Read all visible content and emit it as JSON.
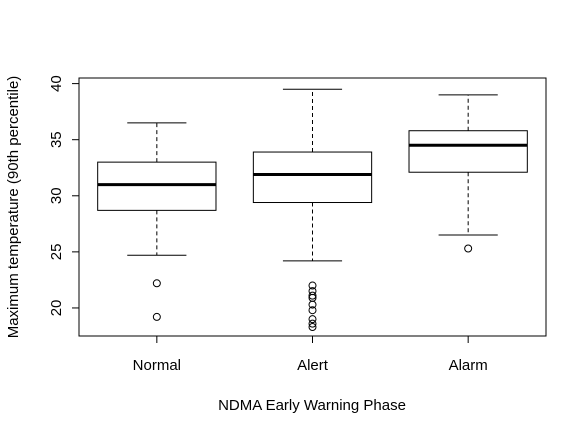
{
  "chart_data": {
    "type": "boxplot",
    "title": "",
    "xlabel": "NDMA Early Warning Phase",
    "ylabel": "Maximum temperature (90th percentile)",
    "categories": [
      "Normal",
      "Alert",
      "Alarm"
    ],
    "ylim": [
      17.5,
      40.5
    ],
    "yticks": [
      20,
      25,
      30,
      35,
      40
    ],
    "grid": false,
    "legend": "none",
    "stroke_color": "#000000",
    "background_color": "#ffffff",
    "boxes": [
      {
        "category": "Normal",
        "whisker_low": 24.7,
        "q1": 28.7,
        "median": 31.0,
        "q3": 33.0,
        "whisker_high": 36.5,
        "outliers": [
          22.2,
          19.2
        ]
      },
      {
        "category": "Alert",
        "whisker_low": 24.2,
        "q1": 29.4,
        "median": 31.9,
        "q3": 33.9,
        "whisker_high": 39.5,
        "outliers": [
          22.0,
          21.5,
          21.1,
          20.9,
          20.3,
          19.8,
          19.0,
          18.6,
          18.3
        ]
      },
      {
        "category": "Alarm",
        "whisker_low": 26.5,
        "q1": 32.1,
        "median": 34.5,
        "q3": 35.8,
        "whisker_high": 39.0,
        "outliers": [
          25.3
        ]
      }
    ]
  }
}
